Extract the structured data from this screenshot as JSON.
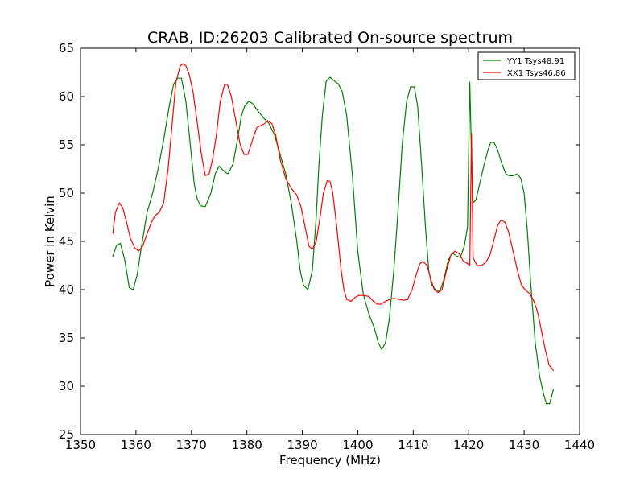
{
  "chart_data": {
    "type": "line",
    "title": "CRAB, ID:26203 Calibrated On-source spectrum",
    "xlabel": "Frequency (MHz)",
    "ylabel": "Power in Kelvin",
    "xlim": [
      1350,
      1440
    ],
    "ylim": [
      25,
      65
    ],
    "xticks": [
      1350,
      1360,
      1370,
      1380,
      1390,
      1400,
      1410,
      1420,
      1430,
      1440
    ],
    "yticks": [
      25,
      30,
      35,
      40,
      45,
      50,
      55,
      60,
      65
    ],
    "grid": false,
    "legend_position": "top-right",
    "series": [
      {
        "name": "YY1 Tsys48.91",
        "color": "#008000",
        "x": [
          1355.8,
          1356.5,
          1357.2,
          1358.0,
          1358.8,
          1359.5,
          1360.2,
          1361.0,
          1362.0,
          1363.0,
          1364.0,
          1365.0,
          1366.0,
          1366.8,
          1367.5,
          1368.2,
          1369.0,
          1369.8,
          1370.5,
          1371.0,
          1371.6,
          1372.5,
          1373.5,
          1374.3,
          1375.0,
          1376.0,
          1376.6,
          1377.5,
          1378.3,
          1379.0,
          1379.6,
          1380.3,
          1381.0,
          1382.0,
          1383.0,
          1384.0,
          1385.0,
          1386.0,
          1387.0,
          1388.0,
          1389.0,
          1389.6,
          1390.2,
          1391.0,
          1391.8,
          1392.5,
          1393.0,
          1393.6,
          1394.3,
          1395.0,
          1395.8,
          1396.5,
          1397.2,
          1398.0,
          1399.0,
          1400.0,
          1401.0,
          1402.0,
          1403.0,
          1403.7,
          1404.3,
          1405.0,
          1405.7,
          1406.5,
          1407.3,
          1408.0,
          1408.8,
          1409.5,
          1410.2,
          1410.8,
          1411.5,
          1412.2,
          1412.8,
          1413.3,
          1414.0,
          1414.8,
          1415.5,
          1416.3,
          1417.0,
          1417.8,
          1418.5,
          1419.2,
          1419.8,
          1420.2,
          1420.5,
          1420.8,
          1421.3,
          1422.0,
          1422.8,
          1423.5,
          1424.0,
          1424.6,
          1425.2,
          1426.0,
          1426.7,
          1427.3,
          1428.0,
          1428.8,
          1429.4,
          1430.0,
          1430.6,
          1431.2,
          1432.0,
          1432.8,
          1433.5,
          1434.0,
          1434.6,
          1435.3
        ],
        "values": [
          43.4,
          44.6,
          44.8,
          43.0,
          40.2,
          40.0,
          41.5,
          44.5,
          48.0,
          50.0,
          52.5,
          55.5,
          59.0,
          61.3,
          61.9,
          61.9,
          59.5,
          55.0,
          51.0,
          49.5,
          48.7,
          48.6,
          50.0,
          52.0,
          52.8,
          52.2,
          52.0,
          53.0,
          55.5,
          58.0,
          59.0,
          59.5,
          59.3,
          58.5,
          57.8,
          57.2,
          56.0,
          54.0,
          52.0,
          49.0,
          45.0,
          42.0,
          40.5,
          40.0,
          42.0,
          47.5,
          53.0,
          58.0,
          61.6,
          62.0,
          61.6,
          61.3,
          60.5,
          58.0,
          52.0,
          44.0,
          39.5,
          37.5,
          36.0,
          34.5,
          33.8,
          34.5,
          37.0,
          42.0,
          48.5,
          55.0,
          59.5,
          61.0,
          61.0,
          59.0,
          53.0,
          46.5,
          42.0,
          40.5,
          40.0,
          39.8,
          41.0,
          43.0,
          43.8,
          43.5,
          43.3,
          44.5,
          46.5,
          61.5,
          54.0,
          49.0,
          49.3,
          51.0,
          53.0,
          54.5,
          55.3,
          55.2,
          54.5,
          53.0,
          52.0,
          51.8,
          51.8,
          52.0,
          51.5,
          50.0,
          46.0,
          40.5,
          34.5,
          31.0,
          29.2,
          28.2,
          28.2,
          29.7
        ]
      },
      {
        "name": "XX1 Tsys46.86",
        "color": "#ff0000",
        "x": [
          1355.8,
          1356.3,
          1357.0,
          1357.6,
          1358.3,
          1359.0,
          1359.8,
          1360.5,
          1361.2,
          1362.0,
          1362.8,
          1363.5,
          1364.2,
          1365.0,
          1365.8,
          1366.5,
          1367.2,
          1368.0,
          1368.5,
          1369.0,
          1369.6,
          1370.3,
          1371.0,
          1371.8,
          1372.5,
          1373.2,
          1373.8,
          1374.5,
          1375.2,
          1376.0,
          1376.5,
          1377.2,
          1378.0,
          1378.8,
          1379.5,
          1380.2,
          1381.0,
          1381.8,
          1382.5,
          1383.2,
          1383.8,
          1384.5,
          1385.2,
          1386.0,
          1387.0,
          1388.0,
          1389.0,
          1389.8,
          1390.5,
          1391.2,
          1391.8,
          1392.5,
          1393.2,
          1393.8,
          1394.5,
          1395.0,
          1395.5,
          1396.2,
          1397.0,
          1397.5,
          1398.0,
          1398.8,
          1399.5,
          1400.2,
          1401.0,
          1402.0,
          1402.8,
          1403.5,
          1404.2,
          1405.0,
          1405.8,
          1406.5,
          1407.5,
          1408.3,
          1409.0,
          1409.8,
          1410.5,
          1411.2,
          1411.8,
          1412.5,
          1413.2,
          1413.8,
          1414.5,
          1415.2,
          1416.0,
          1416.8,
          1417.5,
          1418.3,
          1419.0,
          1419.8,
          1420.2,
          1420.5,
          1420.8,
          1421.5,
          1422.3,
          1423.0,
          1423.8,
          1424.5,
          1425.2,
          1425.8,
          1426.5,
          1427.2,
          1428.0,
          1428.8,
          1429.5,
          1430.3,
          1431.0,
          1431.8,
          1432.5,
          1433.2,
          1433.8,
          1434.5,
          1435.3
        ],
        "values": [
          45.8,
          48.0,
          49.0,
          48.5,
          47.0,
          45.3,
          44.3,
          44.0,
          44.5,
          45.8,
          47.0,
          47.7,
          48.0,
          49.0,
          52.5,
          57.0,
          61.5,
          63.2,
          63.4,
          63.2,
          62.3,
          60.5,
          57.5,
          54.0,
          51.8,
          52.0,
          53.5,
          56.0,
          59.5,
          61.3,
          61.2,
          60.0,
          57.5,
          55.0,
          54.0,
          54.0,
          55.5,
          56.8,
          57.0,
          57.2,
          57.5,
          57.2,
          56.0,
          53.5,
          51.5,
          50.5,
          49.8,
          48.5,
          46.5,
          44.5,
          44.2,
          45.0,
          47.5,
          50.0,
          51.3,
          51.2,
          50.0,
          46.5,
          42.0,
          40.0,
          39.0,
          38.8,
          39.2,
          39.4,
          39.4,
          39.3,
          38.8,
          38.5,
          38.5,
          38.8,
          39.0,
          39.1,
          39.0,
          38.9,
          39.0,
          40.0,
          41.5,
          42.7,
          42.9,
          42.5,
          41.0,
          40.0,
          39.7,
          40.0,
          42.0,
          43.6,
          44.0,
          43.7,
          43.0,
          42.7,
          42.5,
          56.2,
          43.3,
          42.5,
          42.5,
          42.8,
          43.5,
          45.0,
          46.6,
          47.2,
          47.0,
          46.0,
          44.0,
          42.0,
          40.5,
          39.9,
          39.6,
          38.8,
          37.5,
          35.5,
          33.8,
          32.2,
          31.6
        ]
      }
    ]
  }
}
